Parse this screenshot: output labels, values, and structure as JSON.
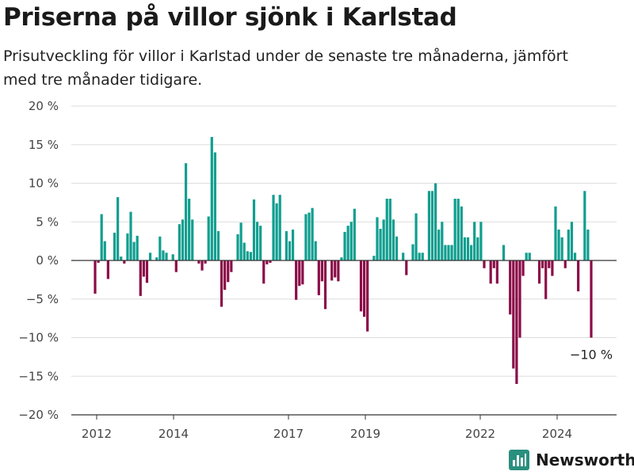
{
  "title": "Priserna på villor sjönk i Karlstad",
  "subtitle": "Prisutveckling för villor i Karlstad under de senaste tre månaderna, jämfört med tre månader tidigare.",
  "brand": {
    "name": "Newsworthy",
    "icon": "bar-chart-logo-icon",
    "color": "#2a8f7e"
  },
  "colors": {
    "positive": "#0f9e8f",
    "negative": "#8a0b47",
    "grid": "#dddddd",
    "zero": "#333333"
  },
  "chart_data": {
    "type": "bar",
    "unit": "%",
    "ylim": [
      -20,
      20
    ],
    "yticks": [
      20,
      15,
      10,
      5,
      0,
      -5,
      -10,
      -15,
      -20
    ],
    "ytick_labels": [
      "20 %",
      "15 %",
      "10 %",
      "5 %",
      "0 %",
      "−5 %",
      "−10 %",
      "−15 %",
      "−20 %"
    ],
    "xticks": [
      "2012",
      "2014",
      "2017",
      "2019",
      "2022",
      "2024"
    ],
    "grid": true,
    "annotation": "−10 %",
    "series": [
      {
        "values": [
          -4.3,
          -0.3,
          6.0,
          2.5,
          -2.4,
          0.0,
          3.6,
          8.2,
          0.5,
          -0.4,
          3.5,
          6.3,
          2.4,
          3.2,
          -4.6,
          -2.1,
          -2.9,
          1.0,
          0.0,
          0.4,
          3.1,
          1.3,
          1.0,
          0.0,
          0.8,
          -1.5,
          4.7,
          5.3,
          12.6,
          8.0,
          5.3,
          0.0,
          -0.4,
          -1.3,
          -0.4,
          5.7,
          16.0,
          14.0,
          3.8,
          -6.0,
          -3.8,
          -2.8,
          -1.5,
          0.0,
          3.4,
          4.9,
          2.3,
          1.2,
          1.1,
          7.9,
          5.0,
          4.5,
          -3.0,
          -0.5,
          -0.3,
          8.5,
          7.4,
          8.5,
          0.0,
          3.8,
          2.5,
          4.0,
          -5.1,
          -3.3,
          -3.1,
          6.0,
          6.2,
          6.8,
          2.5,
          -4.5,
          -2.7,
          -6.3,
          0.0,
          -2.6,
          -2.2,
          -2.7,
          0.4,
          3.7,
          4.5,
          5.0,
          6.7,
          0.0,
          -6.6,
          -7.3,
          -9.2,
          0.0,
          0.6,
          5.6,
          4.1,
          5.3,
          8.0,
          8.0,
          5.3,
          3.1,
          0.0,
          1.0,
          -1.9,
          0.0,
          2.1,
          6.1,
          1.0,
          1.0,
          0.0,
          9.0,
          9.0,
          10.0,
          4.0,
          5.0,
          2.0,
          2.0,
          2.0,
          8.0,
          8.0,
          7.0,
          3.0,
          3.0,
          2.0,
          5.0,
          3.0,
          5.0,
          -1.0,
          0.0,
          -3.0,
          -1.0,
          -3.0,
          0.0,
          2.0,
          0.0,
          -7.0,
          -14.0,
          -16.0,
          -10.0,
          -2.0,
          1.0,
          1.0,
          0.0,
          0.0,
          -3.0,
          -1.0,
          -5.0,
          -1.0,
          -2.0,
          7.0,
          4.0,
          3.0,
          -1.0,
          4.0,
          5.0,
          1.0,
          -4.0,
          0.0,
          9.0,
          4.0,
          -10.0
        ]
      }
    ]
  }
}
